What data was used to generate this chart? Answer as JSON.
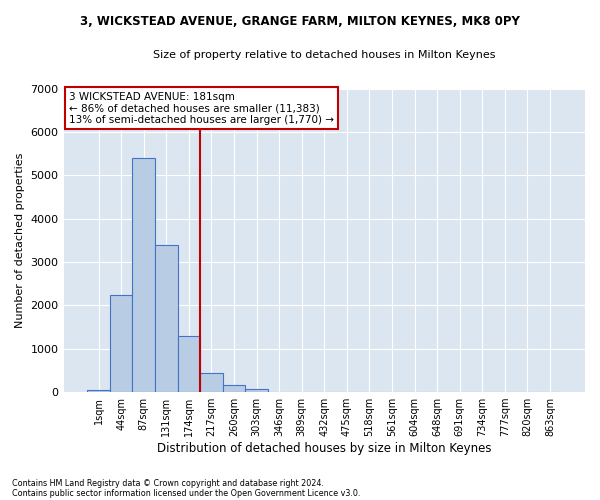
{
  "title1": "3, WICKSTEAD AVENUE, GRANGE FARM, MILTON KEYNES, MK8 0PY",
  "title2": "Size of property relative to detached houses in Milton Keynes",
  "xlabel": "Distribution of detached houses by size in Milton Keynes",
  "ylabel": "Number of detached properties",
  "footnote1": "Contains HM Land Registry data © Crown copyright and database right 2024.",
  "footnote2": "Contains public sector information licensed under the Open Government Licence v3.0.",
  "bin_labels": [
    "1sqm",
    "44sqm",
    "87sqm",
    "131sqm",
    "174sqm",
    "217sqm",
    "260sqm",
    "303sqm",
    "346sqm",
    "389sqm",
    "432sqm",
    "475sqm",
    "518sqm",
    "561sqm",
    "604sqm",
    "648sqm",
    "691sqm",
    "734sqm",
    "777sqm",
    "820sqm",
    "863sqm"
  ],
  "bar_values": [
    55,
    2250,
    5400,
    3400,
    1300,
    430,
    160,
    80,
    10,
    0,
    0,
    0,
    0,
    0,
    0,
    0,
    0,
    0,
    0,
    0,
    0
  ],
  "bar_color": "#b8cce4",
  "bar_edge_color": "#4472c4",
  "vline_position": 4.5,
  "vline_color": "#c00000",
  "ylim": [
    0,
    7000
  ],
  "yticks": [
    0,
    1000,
    2000,
    3000,
    4000,
    5000,
    6000,
    7000
  ],
  "annotation_text": "3 WICKSTEAD AVENUE: 181sqm\n← 86% of detached houses are smaller (11,383)\n13% of semi-detached houses are larger (1,770) →",
  "annotation_box_color": "#ffffff",
  "annotation_border_color": "#c00000",
  "plot_bg_color": "#dce6f1",
  "grid_color": "#ffffff"
}
